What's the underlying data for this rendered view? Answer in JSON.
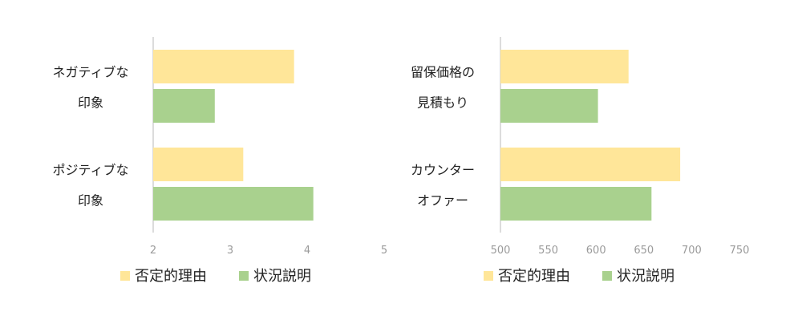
{
  "colors": {
    "negative_reason": "#FFE699",
    "situation": "#A9D18E",
    "axis": "#d0d0d0"
  },
  "chart_data": [
    {
      "type": "bar",
      "orientation": "horizontal",
      "categories": [
        [
          "ネガティブな",
          "印象"
        ],
        [
          "ポジティブな",
          "印象"
        ]
      ],
      "series": [
        {
          "name": "否定的理由",
          "values": [
            3.83,
            3.17
          ]
        },
        {
          "name": "状況説明",
          "values": [
            2.8,
            4.08
          ]
        }
      ],
      "xlim": [
        2,
        5
      ],
      "xticks": [
        "2",
        "3",
        "4",
        "5"
      ],
      "legend": "bottom"
    },
    {
      "type": "bar",
      "orientation": "horizontal",
      "categories": [
        [
          "留保価格の",
          "見積もり"
        ],
        [
          "カウンター",
          "オファー"
        ]
      ],
      "series": [
        {
          "name": "否定的理由",
          "values": [
            634,
            688
          ]
        },
        {
          "name": "状況説明",
          "values": [
            602,
            658
          ]
        }
      ],
      "xlim": [
        500,
        750
      ],
      "xticks": [
        "500",
        "550",
        "600",
        "650",
        "700",
        "750"
      ],
      "legend": "bottom"
    }
  ]
}
